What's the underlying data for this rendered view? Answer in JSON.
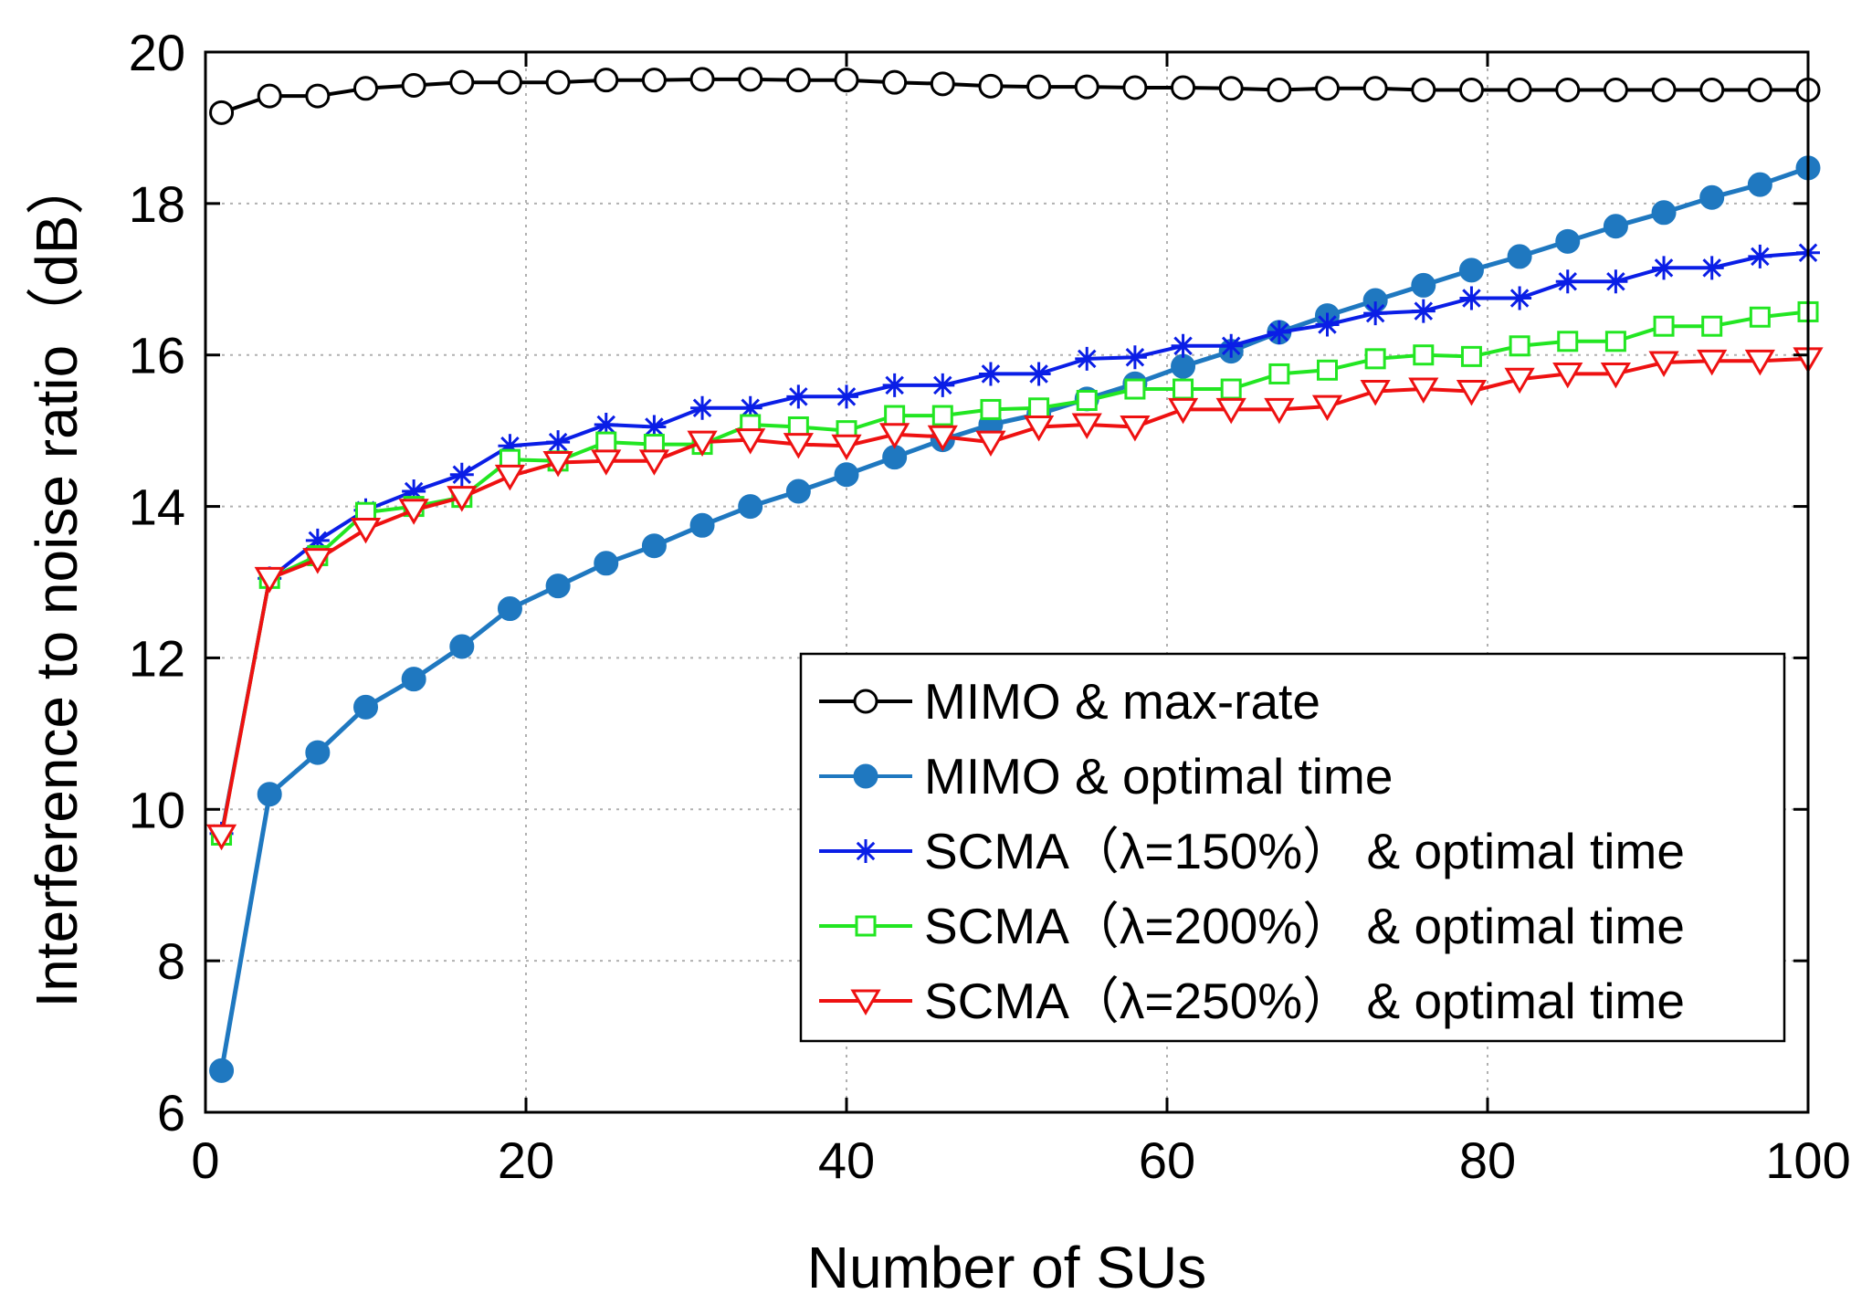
{
  "chart_data": {
    "type": "line",
    "title": "",
    "xlabel": "Number of SUs",
    "ylabel": "Interference to noise ratio（dB）",
    "xlim": [
      0,
      100
    ],
    "ylim": [
      6,
      20
    ],
    "xticks": [
      0,
      20,
      40,
      60,
      80,
      100
    ],
    "yticks": [
      6,
      8,
      10,
      12,
      14,
      16,
      18,
      20
    ],
    "xtick_labels": [
      "0",
      "20",
      "40",
      "60",
      "80",
      "100"
    ],
    "ytick_labels": [
      "6",
      "8",
      "10",
      "12",
      "14",
      "16",
      "18",
      "20"
    ],
    "grid": true,
    "legend_position": "lower-right",
    "x": [
      1,
      4,
      7,
      10,
      13,
      16,
      19,
      22,
      25,
      28,
      31,
      34,
      37,
      40,
      43,
      46,
      49,
      52,
      55,
      58,
      61,
      64,
      67,
      70,
      73,
      76,
      79,
      82,
      85,
      88,
      91,
      94,
      97,
      100
    ],
    "series": [
      {
        "name": "MIMO & max-rate",
        "color": "#000000",
        "marker": "circle-open",
        "values": [
          19.2,
          19.42,
          19.42,
          19.52,
          19.56,
          19.6,
          19.6,
          19.6,
          19.63,
          19.63,
          19.64,
          19.64,
          19.63,
          19.63,
          19.6,
          19.58,
          19.55,
          19.54,
          19.54,
          19.53,
          19.53,
          19.52,
          19.5,
          19.52,
          19.52,
          19.5,
          19.5,
          19.5,
          19.5,
          19.5,
          19.5,
          19.5,
          19.5,
          19.5
        ]
      },
      {
        "name": "MIMO & optimal time",
        "color": "#1f78c0",
        "marker": "circle-filled",
        "values": [
          6.55,
          10.2,
          10.75,
          11.35,
          11.72,
          12.15,
          12.65,
          12.95,
          13.25,
          13.48,
          13.75,
          14.0,
          14.2,
          14.42,
          14.65,
          14.88,
          15.08,
          15.22,
          15.42,
          15.62,
          15.85,
          16.05,
          16.3,
          16.52,
          16.72,
          16.92,
          17.12,
          17.3,
          17.5,
          17.7,
          17.88,
          18.08,
          18.25,
          18.47
        ]
      },
      {
        "name": "SCMA（λ=150%） & optimal time",
        "color": "#0a1ee6",
        "marker": "asterisk",
        "values": [
          9.68,
          13.05,
          13.55,
          13.95,
          14.2,
          14.42,
          14.8,
          14.85,
          15.08,
          15.05,
          15.3,
          15.3,
          15.45,
          15.45,
          15.6,
          15.6,
          15.75,
          15.75,
          15.95,
          15.97,
          16.12,
          16.12,
          16.3,
          16.4,
          16.55,
          16.58,
          16.75,
          16.75,
          16.97,
          16.97,
          17.15,
          17.15,
          17.3,
          17.35
        ]
      },
      {
        "name": "SCMA（λ=200%） & optimal time",
        "color": "#22e622",
        "marker": "square-open",
        "values": [
          9.66,
          13.05,
          13.35,
          13.92,
          14.0,
          14.12,
          14.62,
          14.6,
          14.85,
          14.82,
          14.82,
          15.08,
          15.05,
          15.0,
          15.2,
          15.2,
          15.28,
          15.3,
          15.4,
          15.55,
          15.55,
          15.55,
          15.75,
          15.8,
          15.95,
          16.0,
          15.98,
          16.12,
          16.18,
          16.18,
          16.38,
          16.38,
          16.5,
          16.57
        ]
      },
      {
        "name": "SCMA（λ=250%） & optimal time",
        "color": "#ee1111",
        "marker": "triangle-down-open",
        "values": [
          9.65,
          13.05,
          13.3,
          13.7,
          13.95,
          14.12,
          14.4,
          14.58,
          14.6,
          14.6,
          14.85,
          14.88,
          14.82,
          14.8,
          14.95,
          14.92,
          14.85,
          15.05,
          15.08,
          15.05,
          15.28,
          15.28,
          15.28,
          15.32,
          15.52,
          15.55,
          15.52,
          15.68,
          15.75,
          15.75,
          15.9,
          15.92,
          15.92,
          15.95
        ]
      }
    ]
  }
}
